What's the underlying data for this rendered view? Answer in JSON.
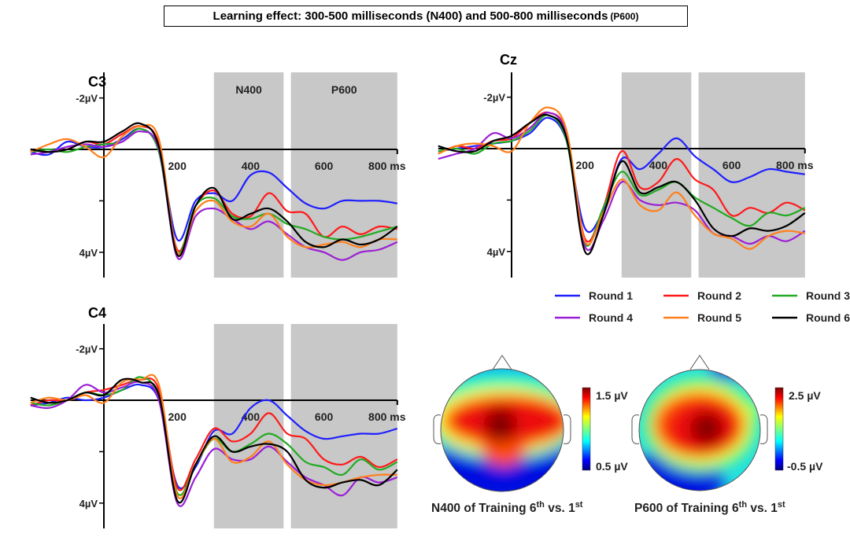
{
  "title": {
    "main": "Learning effect: 300-500 milliseconds (N400) and 500-800 milliseconds",
    "suffix": "(P600)"
  },
  "legend": {
    "placement": "right-middle",
    "items": [
      {
        "label": "Round 1",
        "color": "#1f1fff"
      },
      {
        "label": "Round 2",
        "color": "#ff1a1a"
      },
      {
        "label": "Round 3",
        "color": "#22aa22"
      },
      {
        "label": "Round 4",
        "color": "#9b1fd6"
      },
      {
        "label": "Round 5",
        "color": "#ff7f1a"
      },
      {
        "label": "Round 6",
        "color": "#000000"
      }
    ]
  },
  "chart_data": [
    {
      "type": "line",
      "title": "C3",
      "x_unit": "ms",
      "x_tick_labels": [
        "200",
        "400",
        "600",
        "800 ms"
      ],
      "x_ticks": [
        200,
        400,
        600,
        800
      ],
      "y_tick_labels": [
        "-2µV",
        "4µV"
      ],
      "y_ticks": [
        -2,
        2,
        4
      ],
      "y_inverted": true,
      "xlim": [
        -200,
        800
      ],
      "ylim": [
        -3,
        5
      ],
      "shaded_windows": [
        {
          "label": "N400",
          "range": [
            300,
            490
          ]
        },
        {
          "label": "P600",
          "range": [
            510,
            800
          ]
        }
      ],
      "x": [
        -200,
        -150,
        -100,
        -50,
        0,
        50,
        100,
        150,
        200,
        250,
        300,
        350,
        400,
        450,
        500,
        550,
        600,
        650,
        700,
        750,
        800
      ],
      "series": [
        {
          "name": "Round 1",
          "values": [
            0.1,
            0.2,
            -0.3,
            -0.1,
            -0.1,
            -0.4,
            -0.8,
            0.0,
            3.5,
            2.0,
            1.7,
            2.0,
            1.0,
            0.9,
            1.5,
            2.1,
            2.3,
            2.0,
            2.0,
            2.0,
            2.1
          ]
        },
        {
          "name": "Round 2",
          "values": [
            0.0,
            0.1,
            0.0,
            -0.3,
            -0.2,
            -0.6,
            -0.9,
            -0.2,
            3.9,
            2.2,
            1.6,
            2.5,
            2.6,
            1.7,
            2.4,
            2.5,
            3.4,
            3.0,
            3.3,
            3.0,
            3.1
          ]
        },
        {
          "name": "Round 3",
          "values": [
            0.1,
            0.0,
            0.1,
            -0.1,
            -0.2,
            -0.3,
            -0.8,
            0.1,
            4.0,
            2.2,
            1.9,
            2.6,
            2.7,
            2.5,
            2.9,
            3.1,
            3.4,
            3.5,
            3.4,
            3.2,
            3.0
          ]
        },
        {
          "name": "Round 4",
          "values": [
            0.2,
            0.1,
            -0.1,
            -0.2,
            -0.1,
            -0.3,
            -0.7,
            0.0,
            4.2,
            2.6,
            2.3,
            2.7,
            3.1,
            2.8,
            3.3,
            3.8,
            4.0,
            4.3,
            4.0,
            3.9,
            3.6
          ]
        },
        {
          "name": "Round 5",
          "values": [
            0.1,
            -0.2,
            -0.4,
            -0.1,
            0.3,
            -0.5,
            -0.9,
            -0.4,
            4.0,
            2.4,
            2.0,
            2.8,
            3.0,
            2.5,
            3.4,
            3.8,
            3.7,
            3.6,
            3.8,
            3.5,
            3.5
          ]
        },
        {
          "name": "Round 6",
          "values": [
            0.0,
            0.1,
            0.0,
            -0.3,
            -0.3,
            -0.7,
            -1.0,
            -0.1,
            4.1,
            2.2,
            1.5,
            2.7,
            2.5,
            2.3,
            2.8,
            3.6,
            3.8,
            3.5,
            3.7,
            3.5,
            3.0
          ]
        }
      ]
    },
    {
      "type": "line",
      "title": "Cz",
      "x_unit": "ms",
      "x_tick_labels": [
        "200",
        "400",
        "600",
        "800 ms"
      ],
      "x_ticks": [
        200,
        400,
        600,
        800
      ],
      "y_tick_labels": [
        "-2µV",
        "4µV"
      ],
      "y_ticks": [
        -2,
        2,
        4
      ],
      "y_inverted": true,
      "xlim": [
        -200,
        800
      ],
      "ylim": [
        -3,
        5
      ],
      "shaded_windows": [
        {
          "range": [
            300,
            490
          ]
        },
        {
          "range": [
            510,
            800
          ]
        }
      ],
      "x": [
        -200,
        -150,
        -100,
        -50,
        0,
        50,
        100,
        150,
        200,
        250,
        300,
        350,
        400,
        450,
        500,
        550,
        600,
        650,
        700,
        750,
        800
      ],
      "series": [
        {
          "name": "Round 1",
          "values": [
            0.1,
            0.0,
            -0.1,
            -0.2,
            -0.3,
            -0.6,
            -1.2,
            -0.3,
            3.1,
            2.4,
            0.4,
            0.8,
            0.2,
            -0.4,
            0.3,
            0.8,
            1.3,
            1.1,
            0.8,
            0.9,
            1.0
          ]
        },
        {
          "name": "Round 2",
          "values": [
            0.2,
            -0.1,
            0.0,
            -0.3,
            -0.4,
            -1.0,
            -1.4,
            -0.6,
            3.5,
            2.3,
            0.1,
            1.5,
            1.3,
            0.4,
            1.2,
            1.6,
            2.6,
            2.3,
            2.5,
            2.1,
            2.4
          ]
        },
        {
          "name": "Round 3",
          "values": [
            0.1,
            0.0,
            0.2,
            -0.2,
            -0.3,
            -0.7,
            -1.3,
            -0.3,
            3.7,
            2.3,
            0.9,
            1.8,
            1.6,
            1.3,
            1.9,
            2.3,
            2.7,
            3.0,
            2.5,
            2.6,
            2.3
          ]
        },
        {
          "name": "Round 4",
          "values": [
            0.4,
            0.2,
            0.0,
            -0.6,
            -0.4,
            -0.8,
            -1.4,
            -0.5,
            3.8,
            2.8,
            1.3,
            2.0,
            2.2,
            2.1,
            2.4,
            3.3,
            3.4,
            3.7,
            3.4,
            3.6,
            3.2
          ]
        },
        {
          "name": "Round 5",
          "values": [
            0.2,
            -0.1,
            -0.2,
            -0.1,
            0.1,
            -1.0,
            -1.6,
            -0.7,
            3.6,
            2.5,
            1.2,
            2.2,
            2.4,
            1.7,
            2.6,
            3.3,
            3.5,
            3.9,
            3.4,
            3.2,
            3.3
          ]
        },
        {
          "name": "Round 6",
          "values": [
            -0.1,
            0.1,
            0.1,
            -0.3,
            -0.5,
            -1.0,
            -1.3,
            -0.4,
            4.0,
            2.6,
            0.5,
            1.7,
            1.5,
            1.3,
            2.0,
            3.1,
            3.4,
            3.1,
            3.2,
            3.0,
            2.5
          ]
        }
      ]
    },
    {
      "type": "line",
      "title": "C4",
      "x_unit": "ms",
      "x_tick_labels": [
        "200",
        "400",
        "600",
        "800 ms"
      ],
      "x_ticks": [
        200,
        400,
        600,
        800
      ],
      "y_tick_labels": [
        "-2µV",
        "4µV"
      ],
      "y_ticks": [
        -2,
        2,
        4
      ],
      "y_inverted": true,
      "xlim": [
        -200,
        800
      ],
      "ylim": [
        -3,
        5
      ],
      "shaded_windows": [
        {
          "range": [
            300,
            490
          ]
        },
        {
          "range": [
            510,
            800
          ]
        }
      ],
      "x": [
        -200,
        -150,
        -100,
        -50,
        0,
        50,
        100,
        150,
        200,
        250,
        300,
        350,
        400,
        450,
        500,
        550,
        600,
        650,
        700,
        750,
        800
      ],
      "series": [
        {
          "name": "Round 1",
          "values": [
            0.2,
            0.1,
            -0.1,
            0.0,
            -0.1,
            -0.4,
            -0.6,
            0.0,
            3.3,
            2.6,
            1.2,
            1.3,
            0.3,
            0.0,
            0.6,
            1.2,
            1.5,
            1.4,
            1.3,
            1.3,
            1.1
          ]
        },
        {
          "name": "Round 2",
          "values": [
            0.2,
            0.0,
            0.0,
            -0.3,
            -0.4,
            -0.6,
            -0.8,
            -0.4,
            3.4,
            2.3,
            1.1,
            1.6,
            1.3,
            0.5,
            1.3,
            1.5,
            2.3,
            2.5,
            2.2,
            2.6,
            2.3
          ]
        },
        {
          "name": "Round 3",
          "values": [
            0.1,
            0.2,
            0.0,
            -0.3,
            -0.2,
            -0.4,
            -0.9,
            -0.1,
            3.6,
            2.5,
            1.5,
            2.0,
            1.7,
            1.3,
            1.7,
            2.4,
            2.6,
            2.9,
            2.3,
            2.7,
            2.4
          ]
        },
        {
          "name": "Round 4",
          "values": [
            0.2,
            0.3,
            0.0,
            -0.6,
            -0.3,
            -0.5,
            -0.7,
            0.0,
            4.0,
            3.0,
            1.9,
            2.3,
            2.3,
            1.8,
            2.4,
            3.0,
            3.3,
            3.7,
            3.0,
            3.2,
            3.0
          ]
        },
        {
          "name": "Round 5",
          "values": [
            0.1,
            -0.1,
            0.0,
            -0.2,
            0.1,
            -0.7,
            -0.8,
            -0.6,
            3.7,
            2.5,
            1.5,
            2.4,
            2.2,
            1.6,
            2.5,
            3.1,
            3.3,
            3.2,
            3.0,
            2.9,
            2.9
          ]
        },
        {
          "name": "Round 6",
          "values": [
            -0.1,
            0.1,
            0.0,
            -0.3,
            -0.2,
            -0.8,
            -0.7,
            -0.2,
            3.9,
            2.5,
            1.4,
            2.0,
            1.8,
            1.7,
            2.0,
            3.1,
            3.4,
            3.2,
            3.1,
            3.3,
            2.7
          ]
        }
      ]
    },
    {
      "type": "heatmap",
      "title": "N400 of Training 6th vs. 1st",
      "caption": {
        "pre": "N400 of Training 6",
        "sup1": "th",
        "mid": " vs. 1",
        "sup2": "st"
      },
      "colorbar": {
        "max_label": "1.5 µV",
        "min_label": "0.5 µV",
        "range": [
          0.5,
          1.5
        ],
        "colormap": "jet"
      }
    },
    {
      "type": "heatmap",
      "title": "P600 of Training 6th vs. 1st",
      "caption": {
        "pre": "P600 of Training 6",
        "sup1": "th",
        "mid": " vs. 1",
        "sup2": "st"
      },
      "colorbar": {
        "max_label": "2.5 µV",
        "min_label": "-0.5 µV",
        "range": [
          -0.5,
          2.5
        ],
        "colormap": "jet"
      }
    }
  ]
}
